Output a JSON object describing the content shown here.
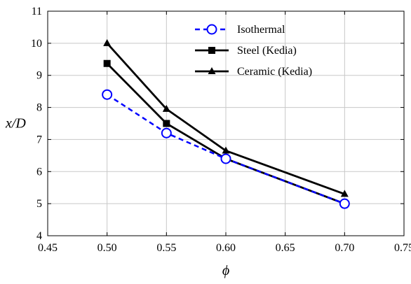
{
  "chart_data": {
    "type": "line",
    "title": "",
    "xlabel": "ϕ",
    "ylabel": "x/D",
    "xlim": [
      0.45,
      0.75
    ],
    "ylim": [
      4,
      11
    ],
    "x_ticks": [
      "0.45",
      "0.50",
      "0.55",
      "0.60",
      "0.65",
      "0.70",
      "0.75"
    ],
    "y_ticks": [
      "4",
      "5",
      "6",
      "7",
      "8",
      "9",
      "10",
      "11"
    ],
    "grid": true,
    "legend_position": "top-right",
    "series": [
      {
        "name": "Isothermal",
        "color": "#0000ff",
        "line_style": "dashed",
        "marker": "open-circle",
        "x": [
          0.5,
          0.55,
          0.6,
          0.7
        ],
        "y": [
          8.4,
          7.2,
          6.4,
          5.0
        ]
      },
      {
        "name": "Steel (Kedia)",
        "color": "#000000",
        "line_style": "solid",
        "marker": "filled-square",
        "x": [
          0.5,
          0.55,
          0.6,
          0.7
        ],
        "y": [
          9.37,
          7.5,
          6.4,
          5.0
        ]
      },
      {
        "name": "Ceramic (Kedia)",
        "color": "#000000",
        "line_style": "solid",
        "marker": "filled-triangle",
        "x": [
          0.5,
          0.55,
          0.6,
          0.7
        ],
        "y": [
          10.0,
          7.95,
          6.65,
          5.3
        ]
      }
    ]
  }
}
